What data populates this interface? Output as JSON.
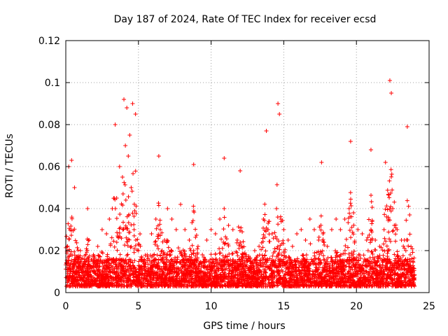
{
  "chart_data": {
    "type": "scatter",
    "title": "Day 187 of 2024, Rate Of TEC Index for receiver ecsd",
    "xlabel": "GPS time / hours",
    "ylabel": "ROTI / TECUs",
    "xlim": [
      0,
      25
    ],
    "ylim": [
      0,
      0.12
    ],
    "xticks": [
      "0",
      "5",
      "10",
      "15",
      "20",
      "25"
    ],
    "yticks": [
      "0",
      "0.02",
      "0.04",
      "0.06",
      "0.08",
      "0.1",
      "0.12"
    ],
    "grid": true,
    "marker": "+",
    "colors": {
      "series": "#ff0000",
      "grid": "#a0a0a0",
      "axis": "#000000"
    },
    "series": [
      {
        "values_x": [
          0.1,
          0.3,
          0.5,
          0.8,
          1.0,
          1.3,
          1.6,
          1.9,
          2.2,
          2.5,
          2.8,
          3.0,
          3.2,
          3.5,
          3.7,
          3.9,
          4.1,
          4.3,
          4.5,
          4.7,
          5.0,
          5.3,
          5.6,
          5.9,
          6.2,
          6.5,
          6.8,
          7.0,
          7.3,
          7.6,
          7.9,
          8.2,
          8.5,
          8.8,
          9.1,
          9.4,
          9.7,
          10.0,
          10.3,
          10.6,
          10.9,
          11.2,
          11.5,
          11.8,
          12.1,
          12.4,
          12.7,
          13.0,
          13.3,
          13.6,
          13.9,
          14.2,
          14.5,
          14.8,
          15.0,
          15.3,
          15.6,
          15.9,
          16.2,
          16.5,
          16.8,
          17.1,
          17.4,
          17.7,
          18.0,
          18.3,
          18.6,
          18.9,
          19.2,
          19.5,
          19.8,
          20.1,
          20.4,
          20.7,
          21.0,
          21.3,
          21.6,
          21.9,
          22.2,
          22.5,
          22.8,
          23.1,
          23.4,
          23.7,
          0.2,
          0.4,
          0.6,
          1.5,
          3.4,
          4.0,
          4.2,
          4.4,
          4.6,
          4.8,
          14.6,
          14.7,
          22.3,
          22.4,
          23.5,
          13.8,
          19.6,
          21.0,
          12.0,
          8.8,
          6.4,
          10.9,
          17.6,
          22.0
        ],
        "values_y": [
          0.012,
          0.018,
          0.01,
          0.015,
          0.02,
          0.012,
          0.025,
          0.018,
          0.022,
          0.03,
          0.028,
          0.035,
          0.04,
          0.045,
          0.06,
          0.055,
          0.07,
          0.065,
          0.05,
          0.03,
          0.02,
          0.015,
          0.018,
          0.028,
          0.035,
          0.03,
          0.025,
          0.04,
          0.035,
          0.03,
          0.042,
          0.03,
          0.025,
          0.02,
          0.022,
          0.018,
          0.025,
          0.03,
          0.028,
          0.035,
          0.04,
          0.032,
          0.03,
          0.025,
          0.022,
          0.018,
          0.015,
          0.02,
          0.022,
          0.035,
          0.03,
          0.028,
          0.04,
          0.035,
          0.03,
          0.025,
          0.022,
          0.028,
          0.03,
          0.025,
          0.035,
          0.03,
          0.025,
          0.028,
          0.022,
          0.03,
          0.035,
          0.03,
          0.035,
          0.04,
          0.038,
          0.03,
          0.028,
          0.025,
          0.03,
          0.025,
          0.022,
          0.03,
          0.035,
          0.04,
          0.03,
          0.025,
          0.02,
          0.018,
          0.06,
          0.063,
          0.05,
          0.04,
          0.08,
          0.092,
          0.088,
          0.075,
          0.09,
          0.085,
          0.09,
          0.085,
          0.101,
          0.095,
          0.079,
          0.077,
          0.072,
          0.068,
          0.058,
          0.061,
          0.065,
          0.064,
          0.062,
          0.062
        ],
        "dense_band": {
          "x_range": [
            0,
            24
          ],
          "y_range": [
            0.003,
            0.03
          ],
          "typical": 0.01
        }
      }
    ]
  }
}
